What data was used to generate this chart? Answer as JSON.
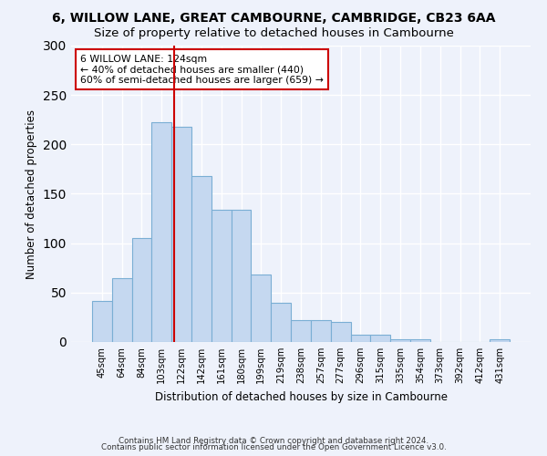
{
  "title": "6, WILLOW LANE, GREAT CAMBOURNE, CAMBRIDGE, CB23 6AA",
  "subtitle": "Size of property relative to detached houses in Cambourne",
  "xlabel": "Distribution of detached houses by size in Cambourne",
  "ylabel": "Number of detached properties",
  "categories": [
    "45sqm",
    "64sqm",
    "84sqm",
    "103sqm",
    "122sqm",
    "142sqm",
    "161sqm",
    "180sqm",
    "199sqm",
    "219sqm",
    "238sqm",
    "257sqm",
    "277sqm",
    "296sqm",
    "315sqm",
    "335sqm",
    "354sqm",
    "373sqm",
    "392sqm",
    "412sqm",
    "431sqm"
  ],
  "values": [
    42,
    65,
    105,
    222,
    218,
    168,
    134,
    134,
    68,
    40,
    22,
    22,
    20,
    7,
    7,
    3,
    3,
    0,
    0,
    0,
    3
  ],
  "bar_color": "#c5d8f0",
  "bar_edge_color": "#7aaed4",
  "vline_x": 3.62,
  "annotation_text": "6 WILLOW LANE: 124sqm\n← 40% of detached houses are smaller (440)\n60% of semi-detached houses are larger (659) →",
  "vline_color": "#cc0000",
  "annotation_box_color": "#ffffff",
  "annotation_box_edge": "#cc0000",
  "footer_line1": "Contains HM Land Registry data © Crown copyright and database right 2024.",
  "footer_line2": "Contains public sector information licensed under the Open Government Licence v3.0.",
  "ylim": [
    0,
    300
  ],
  "yticks": [
    0,
    50,
    100,
    150,
    200,
    250,
    300
  ],
  "title_fontsize": 10,
  "subtitle_fontsize": 9.5,
  "background_color": "#eef2fb",
  "grid_color": "#d0d8e8"
}
